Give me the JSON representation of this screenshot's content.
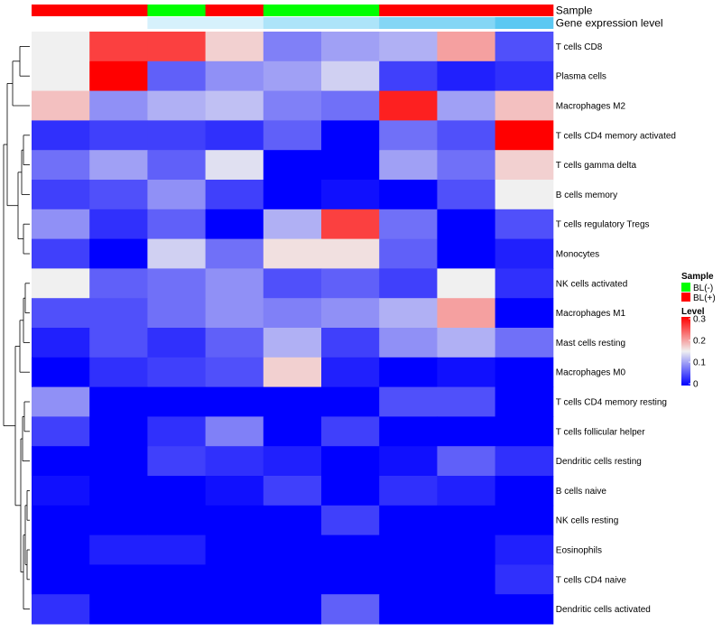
{
  "chart_data": {
    "type": "heatmap",
    "title": "",
    "annotation_rows": [
      {
        "name": "Sample",
        "values": [
          "BL(+)",
          "BL(+)",
          "BL(-)",
          "BL(+)",
          "BL(-)",
          "BL(-)",
          "BL(+)",
          "BL(+)",
          "BL(+)"
        ]
      },
      {
        "name": "Gene expression level",
        "values": [
          0.0,
          0.0,
          0.25,
          0.25,
          0.5,
          0.5,
          0.75,
          0.75,
          1.0
        ]
      }
    ],
    "rows": [
      "T cells CD8",
      "Plasma cells",
      "Macrophages M2",
      "T cells CD4 memory activated",
      "T cells gamma delta",
      "B cells memory",
      "T cells regulatory  Tregs",
      "Monocytes",
      "NK cells activated",
      "Macrophages M1",
      "Mast cells resting",
      "Macrophages M0",
      "T cells CD4 memory resting",
      "T cells follicular helper",
      "Dendritic cells resting",
      "B cells naive",
      "NK cells resting",
      "Eosinophils",
      "T cells CD4 naive",
      "Dendritic cells activated"
    ],
    "values": [
      [
        0.15,
        0.26,
        0.26,
        0.17,
        0.08,
        0.1,
        0.11,
        0.2,
        0.05
      ],
      [
        0.15,
        0.3,
        0.06,
        0.09,
        0.1,
        0.13,
        0.04,
        0.02,
        0.03
      ],
      [
        0.18,
        0.09,
        0.11,
        0.12,
        0.08,
        0.07,
        0.28,
        0.1,
        0.18
      ],
      [
        0.03,
        0.04,
        0.04,
        0.03,
        0.06,
        0.0,
        0.07,
        0.05,
        0.3
      ],
      [
        0.07,
        0.1,
        0.06,
        0.14,
        0.0,
        0.0,
        0.1,
        0.07,
        0.17
      ],
      [
        0.04,
        0.05,
        0.09,
        0.04,
        0.0,
        0.01,
        0.0,
        0.05,
        0.15
      ],
      [
        0.09,
        0.03,
        0.06,
        0.0,
        0.11,
        0.26,
        0.07,
        0.0,
        0.05
      ],
      [
        0.04,
        0.0,
        0.13,
        0.07,
        0.16,
        0.16,
        0.06,
        0.0,
        0.02
      ],
      [
        0.15,
        0.06,
        0.07,
        0.09,
        0.05,
        0.06,
        0.04,
        0.15,
        0.03
      ],
      [
        0.05,
        0.05,
        0.07,
        0.09,
        0.08,
        0.09,
        0.11,
        0.2,
        0.0
      ],
      [
        0.02,
        0.05,
        0.03,
        0.06,
        0.11,
        0.04,
        0.09,
        0.11,
        0.07
      ],
      [
        0.0,
        0.03,
        0.04,
        0.05,
        0.17,
        0.02,
        0.0,
        0.01,
        0.0
      ],
      [
        0.09,
        0.0,
        0.0,
        0.0,
        0.0,
        0.0,
        0.05,
        0.05,
        0.0
      ],
      [
        0.04,
        0.0,
        0.03,
        0.08,
        0.0,
        0.04,
        0.0,
        0.0,
        0.0
      ],
      [
        0.0,
        0.0,
        0.04,
        0.03,
        0.02,
        0.0,
        0.01,
        0.06,
        0.03
      ],
      [
        0.01,
        0.0,
        0.0,
        0.01,
        0.04,
        0.0,
        0.03,
        0.02,
        0.0
      ],
      [
        0.0,
        0.0,
        0.0,
        0.0,
        0.0,
        0.04,
        0.0,
        0.0,
        0.0
      ],
      [
        0.0,
        0.02,
        0.02,
        0.0,
        0.0,
        0.0,
        0.0,
        0.0,
        0.02
      ],
      [
        0.0,
        0.0,
        0.0,
        0.0,
        0.0,
        0.0,
        0.0,
        0.0,
        0.03
      ],
      [
        0.03,
        0.0,
        0.0,
        0.0,
        0.0,
        0.06,
        0.0,
        0.0,
        0.0
      ]
    ],
    "color_scale": {
      "low": "#0000FF",
      "mid": "#F0F0F0",
      "high": "#FF0000",
      "min": 0.0,
      "mid_value": 0.15,
      "max": 0.3
    },
    "legend": {
      "placement": "right",
      "sample": {
        "title": "Sample",
        "entries": [
          {
            "label": "BL(-)",
            "color": "#00FF00"
          },
          {
            "label": "BL(+)",
            "color": "#FF0000"
          }
        ]
      },
      "level": {
        "title": "Level",
        "ticks": [
          0.3,
          0.2,
          0.1,
          0
        ]
      }
    },
    "annotation_colors": {
      "sample": {
        "BL(-)": "#00FF00",
        "BL(+)": "#FF0000"
      },
      "expression_low": "#FFFFFF",
      "expression_high": "#5BC8F2"
    },
    "row_dendrogram": true,
    "column_dendrogram": false
  }
}
